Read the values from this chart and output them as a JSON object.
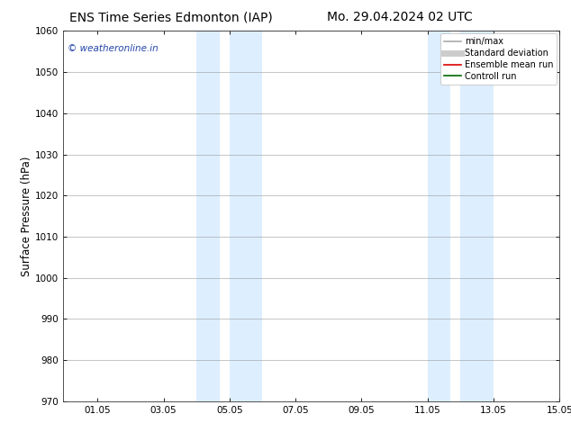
{
  "title_left": "ENS Time Series Edmonton (IAP)",
  "title_right": "Mo. 29.04.2024 02 UTC",
  "ylabel": "Surface Pressure (hPa)",
  "ylim": [
    970,
    1060
  ],
  "yticks": [
    970,
    980,
    990,
    1000,
    1010,
    1020,
    1030,
    1040,
    1050,
    1060
  ],
  "xlim": [
    0.0,
    15.05
  ],
  "xtick_positions": [
    1.05,
    3.05,
    5.05,
    7.05,
    9.05,
    11.05,
    13.05,
    15.05
  ],
  "xtick_labels": [
    "01.05",
    "03.05",
    "05.05",
    "07.05",
    "09.05",
    "11.05",
    "13.05",
    "15.05"
  ],
  "shaded_bands": [
    {
      "x_start": 4.05,
      "x_end": 4.75
    },
    {
      "x_start": 5.05,
      "x_end": 6.05
    },
    {
      "x_start": 11.05,
      "x_end": 11.75
    },
    {
      "x_start": 12.05,
      "x_end": 13.05
    }
  ],
  "shaded_color": "#ddeeff",
  "watermark_text": "© weatheronline.in",
  "watermark_color": "#2244aa",
  "legend_entries": [
    {
      "label": "min/max",
      "color": "#aaaaaa",
      "lw": 1.2
    },
    {
      "label": "Standard deviation",
      "color": "#cccccc",
      "lw": 5
    },
    {
      "label": "Ensemble mean run",
      "color": "#dd0000",
      "lw": 1.2
    },
    {
      "label": "Controll run",
      "color": "#006600",
      "lw": 1.2
    }
  ],
  "bg_color": "#ffffff",
  "grid_color": "#999999",
  "title_fontsize": 10,
  "tick_fontsize": 7.5,
  "label_fontsize": 8.5,
  "legend_fontsize": 7
}
